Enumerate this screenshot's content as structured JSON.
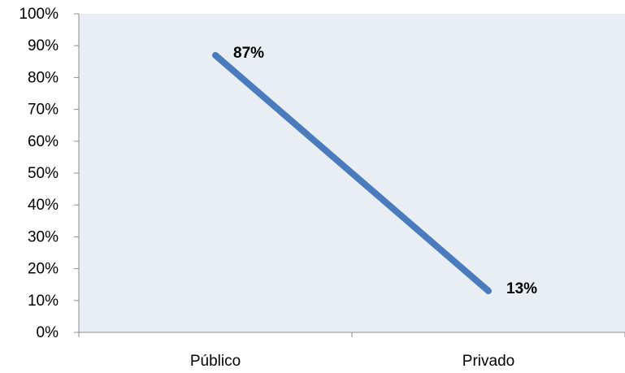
{
  "chart_data": {
    "type": "line",
    "categories": [
      "Público",
      "Privado"
    ],
    "series": [
      {
        "values": [
          87,
          13
        ],
        "data_labels": [
          "87%",
          "13%"
        ]
      }
    ],
    "y_ticks": [
      "0%",
      "10%",
      "20%",
      "30%",
      "40%",
      "50%",
      "60%",
      "70%",
      "80%",
      "90%",
      "100%"
    ],
    "ylim": [
      0,
      100
    ],
    "grid": false,
    "legend": "none",
    "colors": {
      "line": "#4a7bbd",
      "plot_background": "#e9edf4",
      "axis": "#8c8c8c"
    }
  }
}
